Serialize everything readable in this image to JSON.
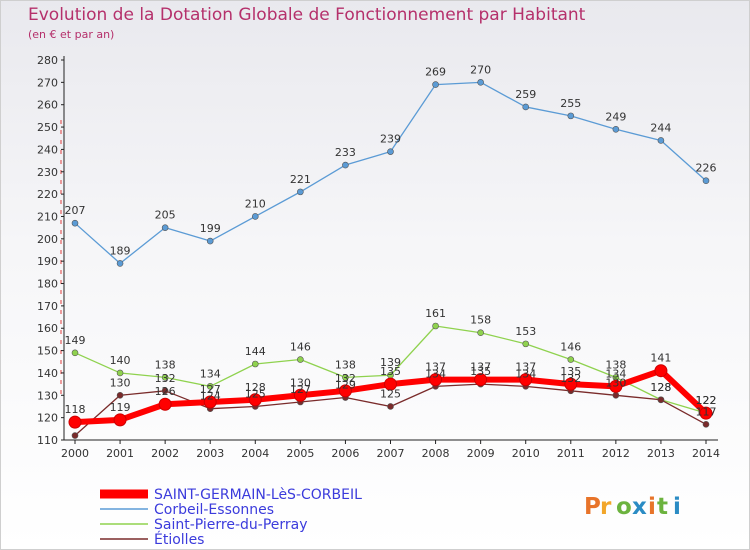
{
  "title": "Evolution de la Dotation Globale de Fonctionnement par Habitant",
  "subtitle": "(en € et par an)",
  "brand": {
    "text": "Proxiti",
    "colors": [
      "#e8742a",
      "#f2a62a",
      "#6cb33e",
      "#2b8cc4",
      "#e8742a",
      "#6cb33e",
      "#2b8cc4"
    ]
  },
  "chart_data": {
    "type": "line",
    "title": "Evolution de la Dotation Globale de Fonctionnement par Habitant",
    "subtitle": "(en € et par an)",
    "xlabel": "",
    "ylabel": "",
    "x": [
      "2000",
      "2001",
      "2002",
      "2003",
      "2004",
      "2005",
      "2006",
      "2007",
      "2008",
      "2009",
      "2010",
      "2011",
      "2012",
      "2013",
      "2014"
    ],
    "ylim": [
      110,
      280
    ],
    "ystep": 10,
    "grid": false,
    "legend_position": "bottom-left",
    "series": [
      {
        "name": "SAINT-GERMAIN-LèS-CORBEIL",
        "color": "#ff0000",
        "values": [
          118,
          119,
          126,
          127,
          128,
          130,
          132,
          135,
          137,
          137,
          137,
          135,
          134,
          141,
          122
        ],
        "labels": [
          "118",
          "119",
          "126",
          "127",
          "128",
          "130",
          "132",
          "135",
          "137",
          "137",
          "137",
          "135",
          "134",
          "141",
          "122"
        ]
      },
      {
        "name": "Corbeil-Essonnes",
        "color": "#5b9bd5",
        "values": [
          207,
          189,
          205,
          199,
          210,
          221,
          233,
          239,
          269,
          270,
          259,
          255,
          249,
          244,
          226
        ],
        "labels": [
          "207",
          "189",
          "205",
          "199",
          "210",
          "221",
          "233",
          "239",
          "269",
          "270",
          "259",
          "255",
          "249",
          "244",
          "226"
        ]
      },
      {
        "name": "Saint-Pierre-du-Perray",
        "color": "#8fd24e",
        "values": [
          149,
          140,
          138,
          134,
          144,
          146,
          138,
          139,
          161,
          158,
          153,
          146,
          138,
          128,
          122
        ],
        "labels": [
          "149",
          "140",
          "138",
          "134",
          "144",
          "146",
          "138",
          "139",
          "161",
          "158",
          "153",
          "146",
          "138",
          "128",
          "122"
        ]
      },
      {
        "name": "Étiolles",
        "color": "#7a2b2b",
        "values": [
          112,
          130,
          132,
          124,
          125,
          127,
          129,
          125,
          134,
          135,
          134,
          132,
          130,
          128,
          117
        ],
        "labels": [
          "",
          "130",
          "132",
          "124",
          "125",
          "127",
          "129",
          "125",
          "134",
          "135",
          "134",
          "132",
          "130",
          "128",
          "117"
        ]
      }
    ]
  }
}
